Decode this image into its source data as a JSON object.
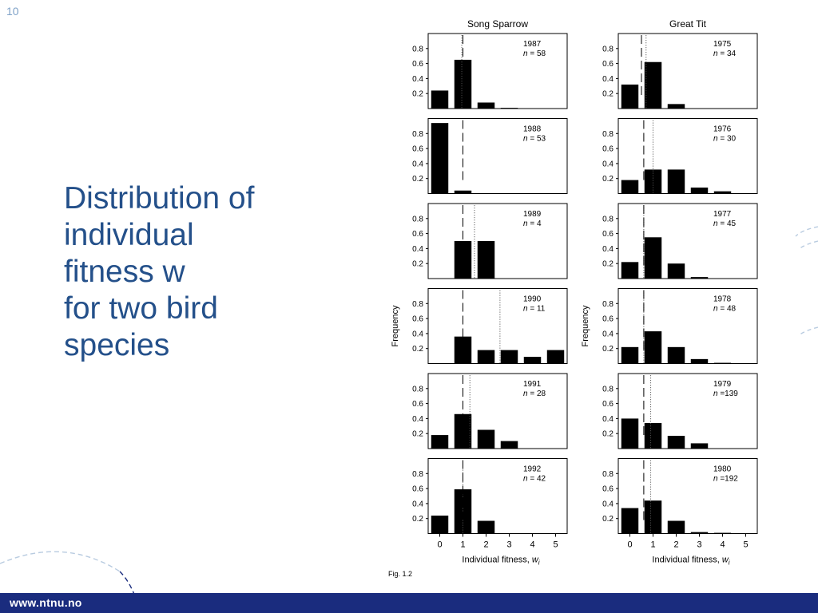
{
  "slide": {
    "number": "10",
    "title_lines": [
      "Distribution of",
      "individual",
      "fitness w",
      "for two bird",
      "species"
    ],
    "footer_url": "www.ntnu.no",
    "colors": {
      "title": "#24508a",
      "footer_bar": "#1a2c7e",
      "bars": "#000000"
    }
  },
  "chart_data": {
    "type": "bar",
    "figure_label": "Fig. 1.2",
    "xlabel": "Individual fitness, ",
    "xlabel_var": "w",
    "xlabel_sub": "i",
    "ylabel": "Frequency",
    "x_ticks": [
      "0",
      "1",
      "2",
      "3",
      "4",
      "5"
    ],
    "y_ticks": [
      "0.2",
      "0.4",
      "0.6",
      "0.8"
    ],
    "ylim": [
      0,
      1.0
    ],
    "xlim": [
      -0.5,
      5.5
    ],
    "columns": [
      {
        "species": "Song Sparrow",
        "panels": [
          {
            "year": "1987",
            "n": "= 58",
            "values": [
              0.24,
              0.65,
              0.08,
              0.01,
              0,
              0
            ],
            "dashed_line": 1.0,
            "dotted_line": 0.95
          },
          {
            "year": "1988",
            "n": "= 53",
            "values": [
              0.94,
              0.04,
              0,
              0,
              0,
              0
            ],
            "dashed_line": 1.0,
            "dotted_line": null
          },
          {
            "year": "1989",
            "n": "= 4",
            "values": [
              0,
              0.5,
              0.5,
              0,
              0,
              0
            ],
            "dashed_line": 1.0,
            "dotted_line": 1.5
          },
          {
            "year": "1990",
            "n": "= 11",
            "values": [
              0,
              0.36,
              0.18,
              0.18,
              0.09,
              0.18
            ],
            "dashed_line": 1.0,
            "dotted_line": 2.6
          },
          {
            "year": "1991",
            "n": "= 28",
            "values": [
              0.18,
              0.46,
              0.25,
              0.1,
              0,
              0
            ],
            "dashed_line": 1.0,
            "dotted_line": 1.3
          },
          {
            "year": "1992",
            "n": "= 42",
            "values": [
              0.24,
              0.59,
              0.17,
              0,
              0,
              0
            ],
            "dashed_line": 1.0,
            "dotted_line": 1.0
          }
        ]
      },
      {
        "species": "Great Tit",
        "panels": [
          {
            "year": "1975",
            "n": "= 34",
            "values": [
              0.32,
              0.62,
              0.06,
              0,
              0,
              0
            ],
            "dashed_line": 0.5,
            "dotted_line": 0.7
          },
          {
            "year": "1976",
            "n": "= 30",
            "values": [
              0.18,
              0.32,
              0.32,
              0.08,
              0.03,
              0
            ],
            "dashed_line": 0.6,
            "dotted_line": 1.0
          },
          {
            "year": "1977",
            "n": "= 45",
            "values": [
              0.22,
              0.55,
              0.2,
              0.02,
              0,
              0
            ],
            "dashed_line": 0.6,
            "dotted_line": 0.6
          },
          {
            "year": "1978",
            "n": "= 48",
            "values": [
              0.22,
              0.43,
              0.22,
              0.06,
              0.01,
              0
            ],
            "dashed_line": 0.6,
            "dotted_line": 0.6
          },
          {
            "year": "1979",
            "n": "=139",
            "values": [
              0.4,
              0.34,
              0.17,
              0.07,
              0,
              0
            ],
            "dashed_line": 0.6,
            "dotted_line": 0.9
          },
          {
            "year": "1980",
            "n": "=192",
            "values": [
              0.34,
              0.44,
              0.17,
              0.02,
              0.01,
              0
            ],
            "dashed_line": 0.6,
            "dotted_line": 0.9
          }
        ]
      }
    ]
  }
}
